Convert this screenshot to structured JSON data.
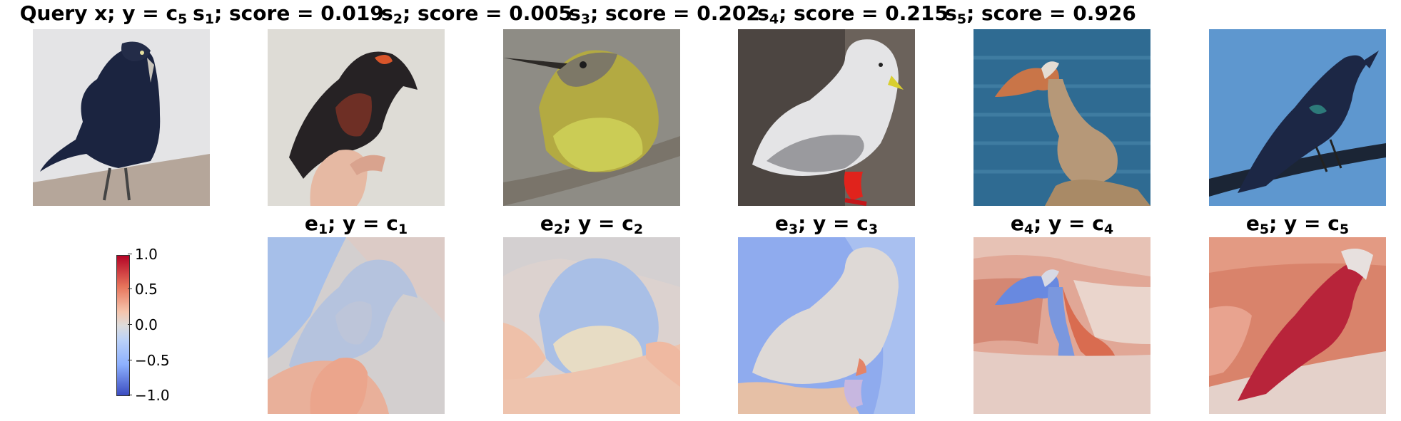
{
  "query": {
    "title_main": "Query x; y = c",
    "title_sub": "5",
    "image": "query-bird-grackle"
  },
  "samples": [
    {
      "s_sub": "1",
      "score_text": "; score = 0.019",
      "image": "sample-bird-oriole-on-hand",
      "e_sub": "1",
      "class_sub": "1",
      "explanation": "explanation-map-1"
    },
    {
      "s_sub": "2",
      "score_text": "; score = 0.005",
      "image": "sample-bird-flycatcher",
      "e_sub": "2",
      "class_sub": "2",
      "explanation": "explanation-map-2"
    },
    {
      "s_sub": "3",
      "score_text": "; score = 0.202",
      "image": "sample-bird-kittiwake",
      "e_sub": "3",
      "class_sub": "3",
      "explanation": "explanation-map-3"
    },
    {
      "s_sub": "4",
      "score_text": "; score = 0.215",
      "image": "sample-bird-pelican",
      "e_sub": "4",
      "class_sub": "4",
      "explanation": "explanation-map-4"
    },
    {
      "s_sub": "5",
      "score_text": "; score = 0.926",
      "image": "sample-bird-grackle",
      "e_sub": "5",
      "class_sub": "5",
      "explanation": "explanation-map-5"
    }
  ],
  "labels": {
    "s_prefix": "s",
    "e_prefix": "e",
    "class_mid": "; y = c"
  },
  "colorbar": {
    "ticks": [
      "1.0",
      "0.5",
      "0.0",
      "−0.5",
      "−1.0"
    ],
    "colormap": "coolwarm",
    "low_color": "#3b4cc0",
    "mid_color": "#dddcdc",
    "high_color": "#b40426"
  }
}
